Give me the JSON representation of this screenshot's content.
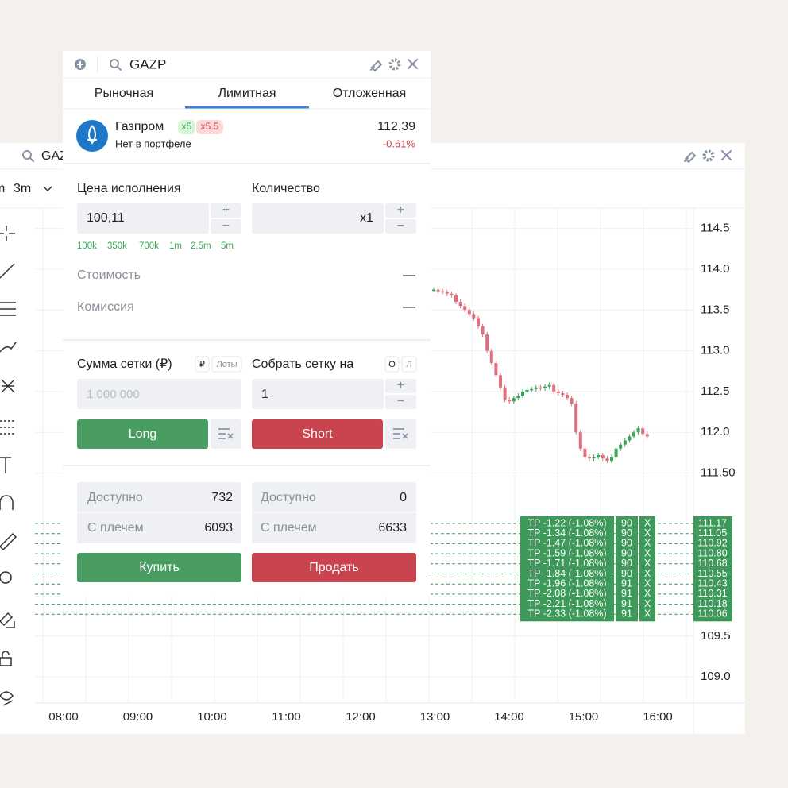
{
  "back_window": {
    "ticker": "GAZP",
    "timeframe_clipped": "m",
    "timeframe": "3m"
  },
  "chart_data": {
    "type": "candlestick",
    "closes": [
      113.75,
      113.73,
      113.72,
      113.7,
      113.68,
      113.6,
      113.55,
      113.5,
      113.45,
      113.4,
      113.3,
      113.2,
      113.0,
      112.85,
      112.7,
      112.55,
      112.4,
      112.38,
      112.42,
      112.45,
      112.5,
      112.52,
      112.53,
      112.55,
      112.54,
      112.56,
      112.58,
      112.5,
      112.48,
      112.46,
      112.42,
      112.35,
      112.0,
      111.8,
      111.7,
      111.68,
      111.7,
      111.72,
      111.68,
      111.65,
      111.7,
      111.8,
      111.85,
      111.9,
      111.95,
      112.0,
      112.05,
      111.98,
      111.95
    ],
    "x_labels": [
      "08:00",
      "09:00",
      "10:00",
      "11:00",
      "12:00",
      "13:00",
      "14:00",
      "15:00",
      "16:00"
    ],
    "ylim": [
      108.68,
      114.75
    ],
    "yticks": [
      114.5,
      {
        "value": 114,
        "label": "114.0"
      },
      113.5,
      {
        "value": 113,
        "label": "113.0"
      },
      112.5,
      {
        "value": 112,
        "label": "112.0"
      },
      {
        "value": 111.5,
        "label": "111.50"
      },
      109.5,
      {
        "value": 109,
        "label": "109.0"
      }
    ],
    "up_color": "#3aa55a",
    "down_color": "#e0707e",
    "grid": true
  },
  "take_profit_orders": [
    {
      "label": "TP -1.22 (-1.08%)",
      "qty": "90",
      "cancel": "X",
      "price": "111.17"
    },
    {
      "label": "TP -1.34 (-1.08%)",
      "qty": "90",
      "cancel": "X",
      "price": "111.05"
    },
    {
      "label": "TP -1.47 (-1.08%)",
      "qty": "90",
      "cancel": "X",
      "price": "110.92"
    },
    {
      "label": "TP -1.59 (-1.08%)",
      "qty": "90",
      "cancel": "X",
      "price": "110.80"
    },
    {
      "label": "TP -1.71 (-1.08%)",
      "qty": "90",
      "cancel": "X",
      "price": "110.68"
    },
    {
      "label": "TP -1.84 (-1.08%)",
      "qty": "90",
      "cancel": "X",
      "price": "110.55"
    },
    {
      "label": "TP -1.96 (-1.08%)",
      "qty": "91",
      "cancel": "X",
      "price": "110.43"
    },
    {
      "label": "TP -2.08 (-1.08%)",
      "qty": "91",
      "cancel": "X",
      "price": "110.31"
    },
    {
      "label": "TP -2.21 (-1.08%)",
      "qty": "91",
      "cancel": "X",
      "price": "110.18"
    },
    {
      "label": "TP -2.33 (-1.08%)",
      "qty": "91",
      "cancel": "X",
      "price": "110.06"
    }
  ],
  "order_panel": {
    "ticker": "GAZP",
    "tabs": [
      "Рыночная",
      "Лимитная",
      "Отложенная"
    ],
    "active_tab": 1,
    "instrument": {
      "name": "Газпром",
      "leverage_long": "x5",
      "leverage_short": "x5.5",
      "status": "Нет в портфеле",
      "price": "112.39",
      "change": "-0.61%"
    },
    "price_label": "Цена исполнения",
    "price_value": "100,11",
    "qty_label": "Количество",
    "qty_value": "x1",
    "stepper_plus": "+",
    "stepper_minus": "−",
    "quick_amounts": [
      "100k",
      "350k",
      "700k",
      "1m",
      "2.5m",
      "5m"
    ],
    "cost_label": "Стоимость",
    "cost_value": "—",
    "fee_label": "Комиссия",
    "fee_value": "—",
    "grid_sum_label": "Сумма сетки (₽)",
    "grid_sum_units": [
      "₽",
      "Лоты"
    ],
    "grid_sum_placeholder": "1 000 000",
    "grid_count_label": "Собрать сетку на",
    "grid_count_units": [
      "О",
      "Л"
    ],
    "grid_count_value": "1",
    "long_button": "Long",
    "short_button": "Short",
    "long_balance": {
      "available_label": "Доступно",
      "available": "732",
      "leverage_label": "С плечем",
      "leveraged": "6093"
    },
    "short_balance": {
      "available_label": "Доступно",
      "available": "0",
      "leverage_label": "С плечем",
      "leveraged": "6633"
    },
    "buy_button": "Купить",
    "sell_button": "Продать"
  }
}
